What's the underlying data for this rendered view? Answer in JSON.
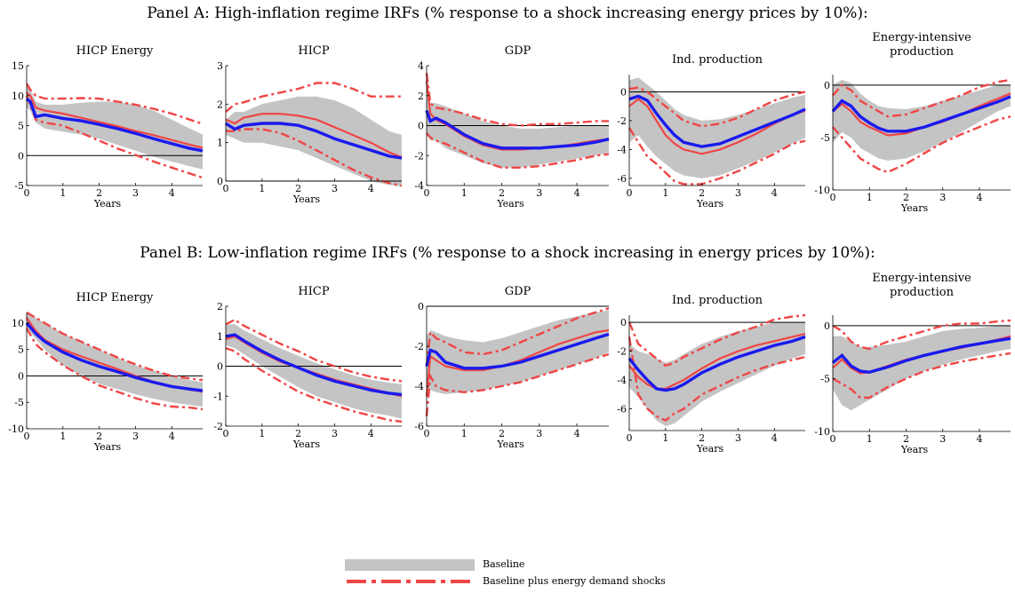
{
  "panels": [
    {
      "title": "Panel A: High-inflation regime IRFs (% response to a shock increasing energy prices by 10%):"
    },
    {
      "title": "Panel B: Low-inflation regime IRFs (% response to a shock increasing in energy prices by 10%):"
    }
  ],
  "legend": {
    "baseline_label": "Baseline",
    "demand_label": "Baseline plus energy demand shocks"
  },
  "colors": {
    "band": "#c4c4c4",
    "median": "#1a1aee",
    "demand": "#f04545",
    "zero": "#000000"
  },
  "chart_data": [
    {
      "type": "line",
      "panel": "A",
      "title": "HICP Energy",
      "xlabel": "Years",
      "x_ticks": [
        0,
        1,
        2,
        3,
        4
      ],
      "y_ticks": [
        -5,
        0,
        5,
        10,
        15
      ],
      "ylim": [
        -5,
        15
      ],
      "xlim": [
        0,
        4.85
      ],
      "x": [
        0,
        0.1,
        0.25,
        0.5,
        1,
        1.5,
        2,
        2.5,
        3,
        3.5,
        4,
        4.5,
        4.85
      ],
      "band_lower": [
        8,
        7.5,
        5.5,
        4.5,
        4,
        3.5,
        2.8,
        1.8,
        0.8,
        -0.2,
        -1.0,
        -1.8,
        -2.3
      ],
      "band_upper": [
        11.5,
        11,
        9,
        8.5,
        8.5,
        8.8,
        9,
        9,
        8.5,
        7.5,
        6,
        4.5,
        3.5
      ],
      "median": [
        9.5,
        9,
        6.5,
        6.8,
        6.2,
        5.8,
        5.2,
        4.5,
        3.7,
        2.8,
        2.0,
        1.2,
        0.8
      ],
      "demand_median": [
        10.5,
        10,
        8,
        7.5,
        7,
        6.3,
        5.6,
        4.9,
        4.1,
        3.4,
        2.6,
        1.8,
        1.3
      ],
      "demand_lower": [
        10,
        8.5,
        6,
        5.5,
        5,
        3.8,
        2.5,
        1.2,
        0.1,
        -1.0,
        -2.0,
        -3.0,
        -3.7
      ],
      "demand_upper": [
        12,
        11,
        10,
        9.5,
        9.5,
        9.6,
        9.5,
        9,
        8.5,
        7.8,
        7,
        6.0,
        5.3
      ]
    },
    {
      "type": "line",
      "panel": "A",
      "title": "HICP",
      "xlabel": "Years",
      "x_ticks": [
        0,
        1,
        2,
        3,
        4
      ],
      "y_ticks": [
        0,
        1,
        2,
        3
      ],
      "ylim": [
        0,
        3
      ],
      "xlim": [
        0,
        4.85
      ],
      "x": [
        0,
        0.25,
        0.5,
        1,
        1.5,
        2,
        2.5,
        3,
        3.5,
        4,
        4.5,
        4.85
      ],
      "band_lower": [
        1.2,
        1.1,
        1.0,
        1.0,
        0.9,
        0.8,
        0.6,
        0.4,
        0.2,
        0.0,
        -0.1,
        -0.15
      ],
      "band_upper": [
        1.6,
        1.8,
        1.8,
        2.0,
        2.1,
        2.2,
        2.2,
        2.1,
        1.9,
        1.6,
        1.3,
        1.2
      ],
      "median": [
        1.5,
        1.35,
        1.45,
        1.5,
        1.5,
        1.45,
        1.3,
        1.1,
        0.95,
        0.8,
        0.65,
        0.6
      ],
      "demand_median": [
        1.6,
        1.5,
        1.65,
        1.75,
        1.75,
        1.7,
        1.6,
        1.4,
        1.2,
        1.0,
        0.75,
        0.62
      ],
      "demand_lower": [
        1.3,
        1.3,
        1.35,
        1.35,
        1.25,
        1.05,
        0.8,
        0.55,
        0.3,
        0.1,
        -0.05,
        -0.12
      ],
      "demand_upper": [
        1.8,
        2.0,
        2.05,
        2.2,
        2.3,
        2.4,
        2.55,
        2.55,
        2.4,
        2.2,
        2.2,
        2.2
      ]
    },
    {
      "type": "line",
      "panel": "A",
      "title": "GDP",
      "xlabel": "Years",
      "x_ticks": [
        0,
        1,
        2,
        3,
        4
      ],
      "y_ticks": [
        -4,
        -2,
        0,
        2,
        4
      ],
      "ylim": [
        -4,
        4
      ],
      "xlim": [
        0,
        4.85
      ],
      "x": [
        0,
        0.1,
        0.25,
        0.5,
        1,
        1.5,
        2,
        2.5,
        3,
        3.5,
        4,
        4.5,
        4.85
      ],
      "band_lower": [
        -0.5,
        -1.0,
        -1.0,
        -1.5,
        -2.0,
        -2.5,
        -2.8,
        -2.8,
        -2.6,
        -2.4,
        -2.2,
        -2.0,
        -1.8
      ],
      "band_upper": [
        2.0,
        1.5,
        1.5,
        1.3,
        0.8,
        0.3,
        0,
        -0.2,
        -0.2,
        -0.1,
        0,
        0,
        0
      ],
      "median": [
        1.0,
        0.3,
        0.5,
        0.2,
        -0.6,
        -1.2,
        -1.5,
        -1.5,
        -1.5,
        -1.4,
        -1.3,
        -1.1,
        -0.9
      ],
      "demand_median": [
        3.0,
        0.8,
        0.4,
        0.1,
        -0.7,
        -1.3,
        -1.6,
        -1.6,
        -1.5,
        -1.4,
        -1.2,
        -1.0,
        -0.9
      ],
      "demand_lower": [
        -0.5,
        -0.8,
        -1.0,
        -1.2,
        -1.8,
        -2.4,
        -2.8,
        -2.8,
        -2.7,
        -2.5,
        -2.3,
        -2.0,
        -1.9
      ],
      "demand_upper": [
        3.5,
        1.5,
        1.2,
        1.1,
        0.8,
        0.4,
        0.1,
        0,
        0.1,
        0.1,
        0.2,
        0.3,
        0.3
      ]
    },
    {
      "type": "line",
      "panel": "A",
      "title": "Ind. production",
      "xlabel": "Years",
      "x_ticks": [
        0,
        1,
        2,
        3,
        4
      ],
      "y_ticks": [
        -6,
        -4,
        -2,
        0
      ],
      "ylim": [
        -6.5,
        1.2
      ],
      "xlim": [
        0,
        4.85
      ],
      "x": [
        0,
        0.25,
        0.5,
        0.75,
        1,
        1.25,
        1.5,
        2,
        2.5,
        3,
        3.5,
        4,
        4.5,
        4.85
      ],
      "band_lower": [
        -3.5,
        -3.0,
        -3.8,
        -4.5,
        -5.0,
        -5.5,
        -5.8,
        -6.0,
        -5.8,
        -5.3,
        -4.8,
        -4.2,
        -3.6,
        -3.2
      ],
      "band_upper": [
        0.8,
        1.0,
        0.5,
        0,
        -0.6,
        -1.2,
        -1.6,
        -2.0,
        -1.9,
        -1.6,
        -1.2,
        -0.8,
        -0.4,
        -0.2
      ],
      "median": [
        -0.5,
        -0.3,
        -0.6,
        -1.5,
        -2.3,
        -3.0,
        -3.5,
        -3.8,
        -3.6,
        -3.1,
        -2.6,
        -2.1,
        -1.6,
        -1.2
      ],
      "demand_median": [
        -1.0,
        -0.5,
        -1.0,
        -2.0,
        -3.0,
        -3.6,
        -4.0,
        -4.3,
        -4.0,
        -3.5,
        -2.9,
        -2.2,
        -1.6,
        -1.3
      ],
      "demand_lower": [
        -2.5,
        -3.5,
        -4.5,
        -5.0,
        -5.6,
        -6.2,
        -6.4,
        -6.4,
        -6.0,
        -5.5,
        -4.9,
        -4.3,
        -3.6,
        -3.4
      ],
      "demand_upper": [
        0.2,
        0.3,
        0,
        -0.5,
        -1.0,
        -1.5,
        -2.0,
        -2.4,
        -2.2,
        -1.8,
        -1.2,
        -0.6,
        -0.2,
        0.0
      ]
    },
    {
      "type": "line",
      "panel": "A",
      "title": "Energy-intensive production",
      "xlabel": "Years",
      "x_ticks": [
        0,
        1,
        2,
        3,
        4
      ],
      "y_ticks": [
        -10,
        -5,
        0
      ],
      "ylim": [
        -10,
        1
      ],
      "xlim": [
        0,
        4.85
      ],
      "x": [
        0,
        0.25,
        0.5,
        0.75,
        1,
        1.25,
        1.5,
        2,
        2.5,
        3,
        3.5,
        4,
        4.5,
        4.85
      ],
      "band_lower": [
        -5.5,
        -4.5,
        -5,
        -6,
        -6.5,
        -7,
        -7.2,
        -7,
        -6.3,
        -5.5,
        -4.5,
        -3.5,
        -2.5,
        -2
      ],
      "band_upper": [
        0,
        0.5,
        0.2,
        -0.8,
        -1.5,
        -2,
        -2.2,
        -2.3,
        -2,
        -1.5,
        -1,
        -0.5,
        0,
        0
      ],
      "median": [
        -2.5,
        -1.5,
        -2,
        -3,
        -3.6,
        -4.1,
        -4.4,
        -4.4,
        -4.0,
        -3.4,
        -2.8,
        -2.2,
        -1.6,
        -1.1
      ],
      "demand_median": [
        -2.5,
        -1.8,
        -2.5,
        -3.5,
        -4,
        -4.4,
        -4.8,
        -4.6,
        -4,
        -3.5,
        -2.8,
        -2,
        -1.3,
        -0.8
      ],
      "demand_lower": [
        -4,
        -5,
        -6,
        -7,
        -7.5,
        -8,
        -8.3,
        -7.5,
        -6.5,
        -5.5,
        -4.7,
        -4,
        -3.3,
        -3
      ],
      "demand_upper": [
        -1,
        0,
        -0.5,
        -1.5,
        -2,
        -2.5,
        -3,
        -2.8,
        -2.2,
        -1.6,
        -1,
        -0.2,
        0.3,
        0.5
      ]
    },
    {
      "type": "line",
      "panel": "B",
      "title": "HICP Energy",
      "xlabel": "Years",
      "x_ticks": [
        0,
        1,
        2,
        3,
        4
      ],
      "y_ticks": [
        -10,
        -5,
        0,
        5,
        10
      ],
      "ylim": [
        -10,
        12
      ],
      "xlim": [
        0,
        4.85
      ],
      "x": [
        0,
        0.25,
        0.5,
        1,
        1.5,
        2,
        2.5,
        3,
        3.5,
        4,
        4.5,
        4.85
      ],
      "band_lower": [
        9,
        7,
        5,
        2,
        0,
        -1.5,
        -2.5,
        -3.5,
        -4.3,
        -5,
        -5.5,
        -5.8
      ],
      "band_upper": [
        12,
        11,
        10,
        8,
        6.5,
        5,
        3.5,
        2,
        1,
        0,
        -0.8,
        -1.2
      ],
      "median": [
        10,
        8,
        6.5,
        4.5,
        3,
        1.8,
        0.8,
        -0.3,
        -1.2,
        -2,
        -2.5,
        -2.8
      ],
      "demand_median": [
        11,
        8.5,
        6.8,
        5,
        3.7,
        2.5,
        1.3,
        0,
        -1.1,
        -2,
        -2.6,
        -3
      ],
      "demand_lower": [
        9,
        6,
        4.5,
        2,
        0,
        -1.8,
        -3,
        -4.2,
        -5.2,
        -5.8,
        -6,
        -6.3
      ],
      "demand_upper": [
        12,
        11,
        10,
        8,
        6.5,
        5,
        3.5,
        2.2,
        1,
        0,
        -0.5,
        -0.8
      ]
    },
    {
      "type": "line",
      "panel": "B",
      "title": "HICP",
      "xlabel": "Years",
      "x_ticks": [
        0,
        1,
        2,
        3,
        4
      ],
      "y_ticks": [
        -2,
        -1,
        0,
        1,
        2
      ],
      "ylim": [
        -2,
        2
      ],
      "xlim": [
        0,
        4.85
      ],
      "x": [
        0,
        0.25,
        0.5,
        1,
        1.5,
        2,
        2.5,
        3,
        3.5,
        4,
        4.5,
        4.85
      ],
      "band_lower": [
        0.7,
        0.6,
        0.4,
        0.0,
        -0.35,
        -0.7,
        -1.0,
        -1.2,
        -1.4,
        -1.55,
        -1.65,
        -1.75
      ],
      "band_upper": [
        1.4,
        1.4,
        1.2,
        0.9,
        0.6,
        0.35,
        0.1,
        -0.1,
        -0.3,
        -0.45,
        -0.55,
        -0.6
      ],
      "median": [
        1.0,
        1.05,
        0.85,
        0.5,
        0.2,
        -0.05,
        -0.3,
        -0.5,
        -0.65,
        -0.8,
        -0.9,
        -0.95
      ],
      "demand_median": [
        0.9,
        1.0,
        0.8,
        0.45,
        0.15,
        -0.05,
        -0.25,
        -0.45,
        -0.6,
        -0.75,
        -0.9,
        -1.0
      ],
      "demand_lower": [
        0.6,
        0.5,
        0.25,
        -0.15,
        -0.5,
        -0.85,
        -1.1,
        -1.3,
        -1.5,
        -1.65,
        -1.8,
        -1.85
      ],
      "demand_upper": [
        1.4,
        1.55,
        1.35,
        1.05,
        0.75,
        0.5,
        0.2,
        0,
        -0.2,
        -0.35,
        -0.45,
        -0.5
      ]
    },
    {
      "type": "line",
      "panel": "B",
      "title": "GDP",
      "xlabel": "Years",
      "x_ticks": [
        0,
        1,
        2,
        3,
        4
      ],
      "y_ticks": [
        -6,
        -4,
        -2,
        0
      ],
      "ylim": [
        -6,
        0
      ],
      "xlim": [
        0,
        4.85
      ],
      "x": [
        0,
        0.1,
        0.25,
        0.5,
        1,
        1.5,
        2,
        2.5,
        3,
        3.5,
        4,
        4.5,
        4.85
      ],
      "band_lower": [
        -4.5,
        -4.2,
        -4.3,
        -4.4,
        -4.3,
        -4.2,
        -4,
        -3.8,
        -3.5,
        -3.2,
        -2.9,
        -2.6,
        -2.3
      ],
      "band_upper": [
        -1.5,
        -1.2,
        -1.3,
        -1.5,
        -1.7,
        -1.8,
        -1.6,
        -1.3,
        -1,
        -0.7,
        -0.5,
        -0.3,
        -0.2
      ],
      "median": [
        -3,
        -2.2,
        -2.3,
        -2.8,
        -3.1,
        -3.1,
        -3,
        -2.8,
        -2.5,
        -2.2,
        -1.9,
        -1.6,
        -1.4
      ],
      "demand_median": [
        -4.5,
        -2.5,
        -2.7,
        -3.0,
        -3.2,
        -3.2,
        -3.0,
        -2.7,
        -2.3,
        -1.9,
        -1.6,
        -1.3,
        -1.2
      ],
      "demand_lower": [
        -5.5,
        -3.5,
        -4.0,
        -4.2,
        -4.3,
        -4.2,
        -4.0,
        -3.8,
        -3.5,
        -3.2,
        -2.9,
        -2.6,
        -2.4
      ],
      "demand_upper": [
        -3,
        -1.3,
        -1.6,
        -1.8,
        -2.3,
        -2.4,
        -2.2,
        -1.8,
        -1.4,
        -1.0,
        -0.6,
        -0.3,
        -0.1
      ]
    },
    {
      "type": "line",
      "panel": "B",
      "title": "Ind. production",
      "xlabel": "Years",
      "x_ticks": [
        0,
        1,
        2,
        3,
        4
      ],
      "y_ticks": [
        -6,
        -4,
        -2,
        0
      ],
      "ylim": [
        -7.5,
        0.5
      ],
      "xlim": [
        0,
        4.85
      ],
      "x": [
        0,
        0.25,
        0.5,
        0.75,
        1,
        1.25,
        1.5,
        2,
        2.5,
        3,
        3.5,
        4,
        4.5,
        4.85
      ],
      "band_lower": [
        -4.5,
        -5.2,
        -6,
        -6.8,
        -7.2,
        -7,
        -6.5,
        -5.5,
        -4.8,
        -4.2,
        -3.6,
        -3,
        -2.5,
        -2.2
      ],
      "band_upper": [
        -1.5,
        -2,
        -2.2,
        -2.5,
        -2.8,
        -2.6,
        -2.2,
        -1.5,
        -1.0,
        -0.6,
        -0.3,
        0,
        0,
        0
      ],
      "median": [
        -2.5,
        -3.3,
        -4,
        -4.6,
        -4.7,
        -4.6,
        -4.3,
        -3.5,
        -2.9,
        -2.4,
        -2,
        -1.6,
        -1.3,
        -1.0
      ],
      "demand_median": [
        -3,
        -3.8,
        -4.3,
        -4.6,
        -4.6,
        -4.3,
        -4,
        -3.2,
        -2.5,
        -2,
        -1.6,
        -1.3,
        -1.0,
        -0.8
      ],
      "demand_lower": [
        -1,
        -5,
        -6,
        -6.5,
        -6.8,
        -6.3,
        -6.0,
        -5,
        -4.4,
        -3.8,
        -3.3,
        -2.9,
        -2.6,
        -2.4
      ],
      "demand_upper": [
        0,
        -1.5,
        -2,
        -2.5,
        -3,
        -2.8,
        -2.4,
        -1.8,
        -1.2,
        -0.7,
        -0.3,
        0.2,
        0.4,
        0.5
      ]
    },
    {
      "type": "line",
      "panel": "B",
      "title": "Energy-intensive production",
      "xlabel": "Years",
      "x_ticks": [
        0,
        1,
        2,
        3,
        4
      ],
      "y_ticks": [
        -10,
        -5,
        0
      ],
      "ylim": [
        -10,
        1
      ],
      "xlim": [
        0,
        4.85
      ],
      "x": [
        0,
        0.25,
        0.5,
        0.75,
        1,
        1.5,
        2,
        2.5,
        3,
        3.5,
        4,
        4.5,
        4.85
      ],
      "band_lower": [
        -6,
        -7.5,
        -8,
        -7.5,
        -7,
        -6,
        -5,
        -4.3,
        -3.7,
        -3.2,
        -2.8,
        -2.4,
        -2.2
      ],
      "band_upper": [
        -1,
        -1,
        -1.5,
        -2,
        -2,
        -1.8,
        -1.5,
        -1.0,
        -0.5,
        -0.3,
        -0.2,
        0,
        0
      ],
      "median": [
        -3.5,
        -2.8,
        -3.8,
        -4.3,
        -4.4,
        -3.9,
        -3.3,
        -2.8,
        -2.4,
        -2.0,
        -1.7,
        -1.4,
        -1.2
      ],
      "demand_median": [
        -4,
        -3.2,
        -4.0,
        -4.5,
        -4.4,
        -3.8,
        -3.2,
        -2.8,
        -2.4,
        -2.1,
        -1.7,
        -1.3,
        -1.0
      ],
      "demand_lower": [
        -5,
        -5.5,
        -6.0,
        -6.8,
        -6.8,
        -5.8,
        -5,
        -4.3,
        -3.8,
        -3.4,
        -3.1,
        -2.8,
        -2.6
      ],
      "demand_upper": [
        0,
        -0.5,
        -1.5,
        -2.0,
        -2.2,
        -1.5,
        -1.0,
        -0.5,
        0,
        0.2,
        0.2,
        0.4,
        0.5
      ]
    }
  ]
}
